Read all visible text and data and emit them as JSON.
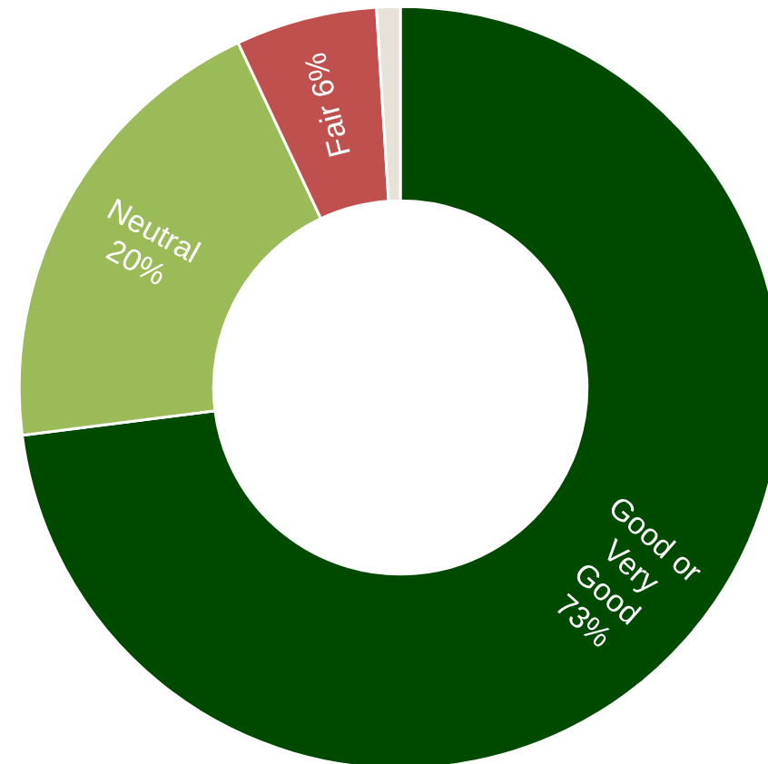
{
  "chart_data": {
    "type": "donut",
    "categories": [
      "Good or Very Good",
      "Neutral",
      "Fair",
      null
    ],
    "values": [
      73,
      20,
      6,
      1
    ],
    "colors": [
      "#004a00",
      "#9bbb59",
      "#c0504d",
      "#e6e2da"
    ],
    "value_labels": [
      "73%",
      "20%",
      "6%",
      null
    ]
  }
}
